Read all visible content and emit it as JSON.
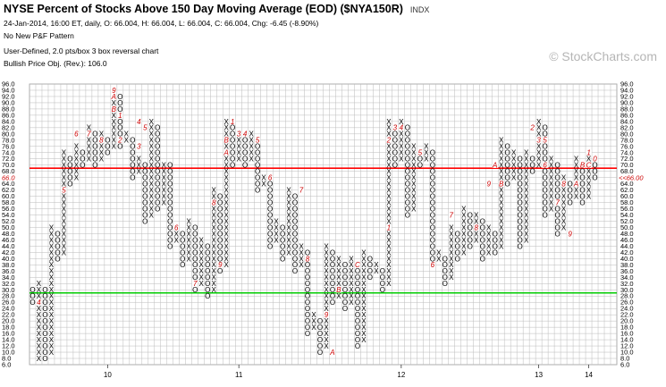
{
  "header": {
    "title": "NYSE Percent of Stocks Above 150 Day Moving Average (EOD) ($NYA150R)",
    "index_tag": "INDX",
    "quote_line": "24-Jan-2014, 16:00 ET, daily, O: 66.004, H: 66.004, L: 66.004, C: 66.004, Chg: -6.45 (-8.90%)",
    "pattern_line": "No New P&F Pattern",
    "chart_type_line": "User-Defined, 2.0 pts/box 3 box reversal chart",
    "objective_line": "Bullish Price Obj. (Rev.): 106.0"
  },
  "watermark": "© StockCharts.com",
  "colors": {
    "x_mark": "#000000",
    "o_mark": "#000000",
    "month_marker": "#cc0000",
    "resistance_line": "#ff0000",
    "support_line": "#00cc00",
    "last_price_label": "#cc0000",
    "grid": "#bbbbbb"
  },
  "chart_data": {
    "type": "point-and-figure",
    "box_size": 2.0,
    "reversal": 3,
    "ylim": [
      6,
      96
    ],
    "y_tick_labels": [
      "6.0",
      "8.0",
      "10.0",
      "12.0",
      "14.0",
      "16.0",
      "18.0",
      "20.0",
      "22.0",
      "24.0",
      "26.0",
      "28.0",
      "30.0",
      "32.0",
      "34.0",
      "36.0",
      "38.0",
      "40.0",
      "42.0",
      "44.0",
      "46.0",
      "48.0",
      "50.0",
      "52.0",
      "54.0",
      "56.0",
      "58.0",
      "60.0",
      "62.0",
      "64.0",
      "66.0",
      "68.0",
      "70.0",
      "72.0",
      "74.0",
      "76.0",
      "78.0",
      "80.0",
      "82.0",
      "84.0",
      "86.0",
      "88.0",
      "90.0",
      "92.0",
      "94.0",
      "96.0"
    ],
    "x_labels": [
      {
        "label": "10",
        "column": 12
      },
      {
        "label": "11",
        "column": 33
      },
      {
        "label": "12",
        "column": 59
      },
      {
        "label": "13",
        "column": 81
      },
      {
        "label": "14",
        "column": 89
      }
    ],
    "columns": [
      {
        "type": "O",
        "high": 30,
        "low": 26
      },
      {
        "type": "X",
        "high": 32,
        "low": 8
      },
      {
        "type": "O",
        "high": 30,
        "low": 8
      },
      {
        "type": "X",
        "high": 50,
        "low": 10
      },
      {
        "type": "O",
        "high": 48,
        "low": 40
      },
      {
        "type": "X",
        "high": 74,
        "low": 42
      },
      {
        "type": "O",
        "high": 72,
        "low": 64
      },
      {
        "type": "X",
        "high": 76,
        "low": 66
      },
      {
        "type": "O",
        "high": 74,
        "low": 70
      },
      {
        "type": "X",
        "high": 82,
        "low": 72
      },
      {
        "type": "O",
        "high": 80,
        "low": 70
      },
      {
        "type": "X",
        "high": 80,
        "low": 72
      },
      {
        "type": "O",
        "high": 78,
        "low": 74
      },
      {
        "type": "X",
        "high": 94,
        "low": 76
      },
      {
        "type": "O",
        "high": 92,
        "low": 76
      },
      {
        "type": "X",
        "high": 80,
        "low": 78
      },
      {
        "type": "O",
        "high": 78,
        "low": 66
      },
      {
        "type": "X",
        "high": 72,
        "low": 68
      },
      {
        "type": "O",
        "high": 70,
        "low": 52
      },
      {
        "type": "X",
        "high": 84,
        "low": 54
      },
      {
        "type": "O",
        "high": 82,
        "low": 56
      },
      {
        "type": "X",
        "high": 70,
        "low": 58
      },
      {
        "type": "O",
        "high": 70,
        "low": 44
      },
      {
        "type": "X",
        "high": 50,
        "low": 46
      },
      {
        "type": "O",
        "high": 48,
        "low": 38
      },
      {
        "type": "X",
        "high": 52,
        "low": 40
      },
      {
        "type": "O",
        "high": 50,
        "low": 30
      },
      {
        "type": "X",
        "high": 46,
        "low": 32
      },
      {
        "type": "O",
        "high": 44,
        "low": 28
      },
      {
        "type": "X",
        "high": 62,
        "low": 30
      },
      {
        "type": "O",
        "high": 60,
        "low": 36
      },
      {
        "type": "X",
        "high": 84,
        "low": 38
      },
      {
        "type": "O",
        "high": 82,
        "low": 70
      },
      {
        "type": "X",
        "high": 80,
        "low": 72
      },
      {
        "type": "O",
        "high": 78,
        "low": 70
      },
      {
        "type": "X",
        "high": 80,
        "low": 72
      },
      {
        "type": "O",
        "high": 78,
        "low": 62
      },
      {
        "type": "X",
        "high": 66,
        "low": 64
      },
      {
        "type": "O",
        "high": 64,
        "low": 44
      },
      {
        "type": "X",
        "high": 52,
        "low": 46
      },
      {
        "type": "O",
        "high": 50,
        "low": 40
      },
      {
        "type": "X",
        "high": 62,
        "low": 42
      },
      {
        "type": "O",
        "high": 60,
        "low": 36
      },
      {
        "type": "X",
        "high": 44,
        "low": 38
      },
      {
        "type": "O",
        "high": 42,
        "low": 16
      },
      {
        "type": "X",
        "high": 22,
        "low": 18
      },
      {
        "type": "O",
        "high": 20,
        "low": 10
      },
      {
        "type": "X",
        "high": 44,
        "low": 12
      },
      {
        "type": "O",
        "high": 42,
        "low": 26
      },
      {
        "type": "X",
        "high": 40,
        "low": 28
      },
      {
        "type": "O",
        "high": 38,
        "low": 24
      },
      {
        "type": "X",
        "high": 40,
        "low": 26
      },
      {
        "type": "O",
        "high": 38,
        "low": 12
      },
      {
        "type": "X",
        "high": 42,
        "low": 14
      },
      {
        "type": "O",
        "high": 40,
        "low": 34
      },
      {
        "type": "X",
        "high": 38,
        "low": 36
      },
      {
        "type": "O",
        "high": 36,
        "low": 30
      },
      {
        "type": "X",
        "high": 84,
        "low": 32
      },
      {
        "type": "O",
        "high": 82,
        "low": 70
      },
      {
        "type": "X",
        "high": 84,
        "low": 72
      },
      {
        "type": "O",
        "high": 82,
        "low": 54
      },
      {
        "type": "X",
        "high": 76,
        "low": 56
      },
      {
        "type": "O",
        "high": 74,
        "low": 70
      },
      {
        "type": "X",
        "high": 76,
        "low": 72
      },
      {
        "type": "O",
        "high": 74,
        "low": 38
      },
      {
        "type": "X",
        "high": 42,
        "low": 40
      },
      {
        "type": "O",
        "high": 40,
        "low": 32
      },
      {
        "type": "X",
        "high": 50,
        "low": 34
      },
      {
        "type": "O",
        "high": 48,
        "low": 40
      },
      {
        "type": "X",
        "high": 56,
        "low": 42
      },
      {
        "type": "O",
        "high": 54,
        "low": 44
      },
      {
        "type": "X",
        "high": 54,
        "low": 46
      },
      {
        "type": "O",
        "high": 52,
        "low": 40
      },
      {
        "type": "X",
        "high": 50,
        "low": 42
      },
      {
        "type": "O",
        "high": 48,
        "low": 42
      },
      {
        "type": "X",
        "high": 78,
        "low": 44
      },
      {
        "type": "O",
        "high": 76,
        "low": 64
      },
      {
        "type": "X",
        "high": 74,
        "low": 66
      },
      {
        "type": "O",
        "high": 72,
        "low": 44
      },
      {
        "type": "X",
        "high": 74,
        "low": 46
      },
      {
        "type": "O",
        "high": 72,
        "low": 68
      },
      {
        "type": "X",
        "high": 84,
        "low": 70
      },
      {
        "type": "O",
        "high": 82,
        "low": 54
      },
      {
        "type": "X",
        "high": 72,
        "low": 56
      },
      {
        "type": "O",
        "high": 70,
        "low": 48
      },
      {
        "type": "X",
        "high": 66,
        "low": 50
      },
      {
        "type": "O",
        "high": 64,
        "low": 58
      },
      {
        "type": "X",
        "high": 72,
        "low": 60
      },
      {
        "type": "O",
        "high": 70,
        "low": 58
      },
      {
        "type": "X",
        "high": 72,
        "low": 60
      },
      {
        "type": "O",
        "high": 70,
        "low": 66
      }
    ],
    "month_markers": [
      {
        "label": "4",
        "column": 1,
        "value": 26
      },
      {
        "label": "5",
        "column": 5,
        "value": 62
      },
      {
        "label": "6",
        "column": 7,
        "value": 80
      },
      {
        "label": "7",
        "column": 9,
        "value": 80
      },
      {
        "label": "8",
        "column": 11,
        "value": 78
      },
      {
        "label": "9",
        "column": 13,
        "value": 94
      },
      {
        "label": "A",
        "column": 13,
        "value": 92
      },
      {
        "label": "B",
        "column": 13,
        "value": 88
      },
      {
        "label": "1",
        "column": 14,
        "value": 86
      },
      {
        "label": "2",
        "column": 14,
        "value": 78
      },
      {
        "label": "4",
        "column": 17,
        "value": 84
      },
      {
        "label": "5",
        "column": 18,
        "value": 82
      },
      {
        "label": "3",
        "column": 17,
        "value": 76
      },
      {
        "label": "6",
        "column": 23,
        "value": 50
      },
      {
        "label": "7",
        "column": 26,
        "value": 32
      },
      {
        "label": "8",
        "column": 29,
        "value": 58
      },
      {
        "label": "9",
        "column": 30,
        "value": 38
      },
      {
        "label": "A",
        "column": 31,
        "value": 74
      },
      {
        "label": "B",
        "column": 31,
        "value": 78
      },
      {
        "label": "1",
        "column": 32,
        "value": 84
      },
      {
        "label": "3",
        "column": 33,
        "value": 80
      },
      {
        "label": "4",
        "column": 34,
        "value": 80
      },
      {
        "label": "5",
        "column": 36,
        "value": 78
      },
      {
        "label": "6",
        "column": 38,
        "value": 66
      },
      {
        "label": "7",
        "column": 43,
        "value": 62
      },
      {
        "label": "8",
        "column": 44,
        "value": 40
      },
      {
        "label": "9",
        "column": 47,
        "value": 22
      },
      {
        "label": "A",
        "column": 48,
        "value": 10
      },
      {
        "label": "B",
        "column": 49,
        "value": 30
      },
      {
        "label": "C",
        "column": 52,
        "value": 38
      },
      {
        "label": "1",
        "column": 57,
        "value": 50
      },
      {
        "label": "2",
        "column": 57,
        "value": 78
      },
      {
        "label": "3",
        "column": 58,
        "value": 82
      },
      {
        "label": "4",
        "column": 59,
        "value": 82
      },
      {
        "label": "5",
        "column": 62,
        "value": 74
      },
      {
        "label": "6",
        "column": 64,
        "value": 38
      },
      {
        "label": "7",
        "column": 67,
        "value": 54
      },
      {
        "label": "8",
        "column": 71,
        "value": 50
      },
      {
        "label": "9",
        "column": 73,
        "value": 64
      },
      {
        "label": "A",
        "column": 74,
        "value": 70
      },
      {
        "label": "B",
        "column": 75,
        "value": 64
      },
      {
        "label": "2",
        "column": 80,
        "value": 82
      },
      {
        "label": "3",
        "column": 81,
        "value": 78
      },
      {
        "label": "5",
        "column": 82,
        "value": 78
      },
      {
        "label": "6",
        "column": 82,
        "value": 70
      },
      {
        "label": "7",
        "column": 84,
        "value": 58
      },
      {
        "label": "8",
        "column": 85,
        "value": 64
      },
      {
        "label": "9",
        "column": 86,
        "value": 48
      },
      {
        "label": "A",
        "column": 87,
        "value": 64
      },
      {
        "label": "1",
        "column": 89,
        "value": 74
      },
      {
        "label": "B",
        "column": 88,
        "value": 70
      },
      {
        "label": "C",
        "column": 89,
        "value": 70
      },
      {
        "label": "0",
        "column": 90,
        "value": 72
      }
    ],
    "horizontal_lines": [
      {
        "name": "resistance",
        "value": 69,
        "color": "#ff0000"
      },
      {
        "name": "support",
        "value": 29,
        "color": "#00cc00"
      }
    ],
    "last_price_label": {
      "left_text": "66.0",
      "right_text": "<<66.00",
      "value": 66
    }
  }
}
